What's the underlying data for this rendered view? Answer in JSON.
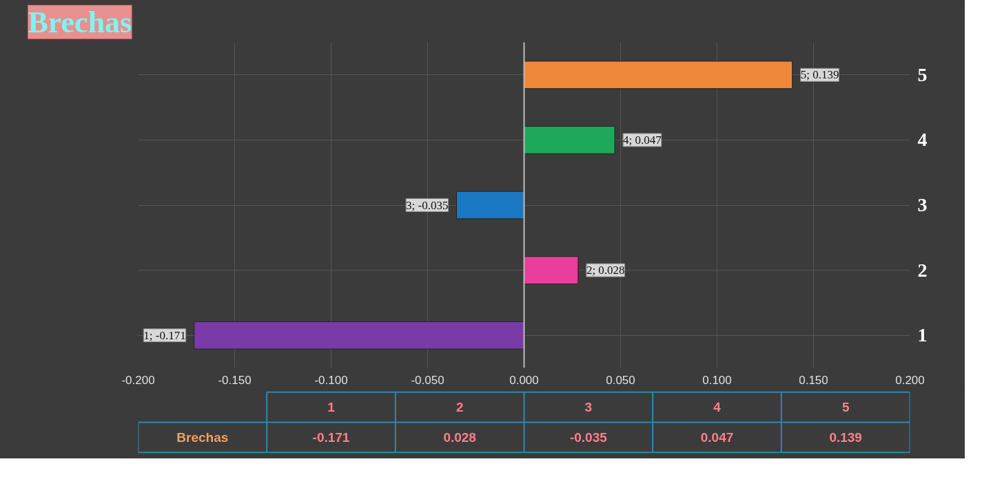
{
  "chart_data": {
    "type": "bar",
    "orientation": "horizontal",
    "title": "Brechas",
    "categories": [
      "5",
      "4",
      "3",
      "2",
      "1"
    ],
    "series": [
      {
        "name": "Brechas",
        "colors": [
          "#f0883a",
          "#1ea85a",
          "#1a78c2",
          "#e83e9c",
          "#7a3aa8"
        ],
        "values": [
          0.139,
          0.047,
          -0.035,
          0.028,
          -0.171
        ],
        "value_labels": [
          "5; 0.139",
          "4; 0.047",
          "3; -0.035",
          "2; 0.028",
          "1; -0.171"
        ]
      }
    ],
    "annotations": [
      "-0.171",
      "0.028",
      "-0.035",
      "0.047",
      "0.139"
    ],
    "xlim": [
      -0.2,
      0.2
    ],
    "xticks": [
      {
        "value": -0.2,
        "label": "-0.200"
      },
      {
        "value": -0.15,
        "label": "-0.150"
      },
      {
        "value": -0.1,
        "label": "-0.100"
      },
      {
        "value": -0.05,
        "label": "-0.050"
      },
      {
        "value": 0,
        "label": "0.000"
      },
      {
        "value": 0.05,
        "label": "0.050"
      },
      {
        "value": 0.1,
        "label": "0.100"
      },
      {
        "value": 0.15,
        "label": "0.150"
      },
      {
        "value": 0.2,
        "label": "0.200"
      }
    ],
    "grid": true,
    "legend": false
  }
}
